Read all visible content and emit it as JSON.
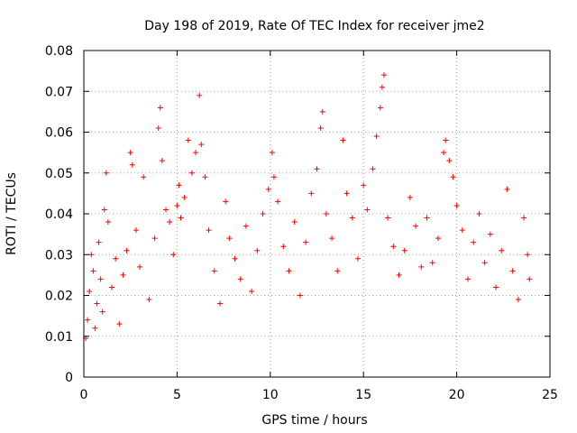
{
  "chart_data": {
    "type": "scatter",
    "title": "Day 198 of 2019, Rate Of TEC Index for receiver jme2",
    "xlabel": "GPS time / hours",
    "ylabel": "ROTI / TECUs",
    "xlim": [
      0,
      25
    ],
    "ylim": [
      0,
      0.08
    ],
    "x_ticks": [
      0,
      5,
      10,
      15,
      20,
      25
    ],
    "x_tick_labels": [
      "0",
      "5",
      "10",
      "15",
      "20",
      "25"
    ],
    "y_ticks": [
      0,
      0.01,
      0.02,
      0.03,
      0.04,
      0.05,
      0.06,
      0.07,
      0.08
    ],
    "y_tick_labels": [
      "0",
      "0.01",
      "0.02",
      "0.03",
      "0.04",
      "0.05",
      "0.06",
      "0.07",
      "0.08"
    ],
    "grid": true,
    "marker": "+",
    "marker_color": "#ff0000",
    "series": [
      {
        "name": "ROTI",
        "color": "#ff0000",
        "points": [
          [
            0.1,
            0.0095
          ],
          [
            0.2,
            0.014
          ],
          [
            0.3,
            0.021
          ],
          [
            0.4,
            0.03
          ],
          [
            0.5,
            0.026
          ],
          [
            0.6,
            0.012
          ],
          [
            0.7,
            0.018
          ],
          [
            0.8,
            0.033
          ],
          [
            0.9,
            0.024
          ],
          [
            1.0,
            0.016
          ],
          [
            1.1,
            0.041
          ],
          [
            1.2,
            0.05
          ],
          [
            1.3,
            0.038
          ],
          [
            1.5,
            0.022
          ],
          [
            1.7,
            0.029
          ],
          [
            1.9,
            0.013
          ],
          [
            2.1,
            0.025
          ],
          [
            2.3,
            0.031
          ],
          [
            2.5,
            0.055
          ],
          [
            2.6,
            0.052
          ],
          [
            2.8,
            0.036
          ],
          [
            3.0,
            0.027
          ],
          [
            3.2,
            0.049
          ],
          [
            3.5,
            0.019
          ],
          [
            3.8,
            0.034
          ],
          [
            4.0,
            0.061
          ],
          [
            4.1,
            0.066
          ],
          [
            4.2,
            0.053
          ],
          [
            4.4,
            0.041
          ],
          [
            4.6,
            0.038
          ],
          [
            4.8,
            0.03
          ],
          [
            5.0,
            0.042
          ],
          [
            5.1,
            0.047
          ],
          [
            5.2,
            0.039
          ],
          [
            5.4,
            0.044
          ],
          [
            5.6,
            0.058
          ],
          [
            5.8,
            0.05
          ],
          [
            6.0,
            0.055
          ],
          [
            6.2,
            0.069
          ],
          [
            6.3,
            0.057
          ],
          [
            6.5,
            0.049
          ],
          [
            6.7,
            0.036
          ],
          [
            7.0,
            0.026
          ],
          [
            7.3,
            0.018
          ],
          [
            7.6,
            0.043
          ],
          [
            7.8,
            0.034
          ],
          [
            8.1,
            0.029
          ],
          [
            8.4,
            0.024
          ],
          [
            8.7,
            0.037
          ],
          [
            9.0,
            0.021
          ],
          [
            9.3,
            0.031
          ],
          [
            9.6,
            0.04
          ],
          [
            9.9,
            0.046
          ],
          [
            10.1,
            0.055
          ],
          [
            10.2,
            0.049
          ],
          [
            10.4,
            0.043
          ],
          [
            10.7,
            0.032
          ],
          [
            11.0,
            0.026
          ],
          [
            11.3,
            0.038
          ],
          [
            11.6,
            0.02
          ],
          [
            11.9,
            0.033
          ],
          [
            12.2,
            0.045
          ],
          [
            12.5,
            0.051
          ],
          [
            12.7,
            0.061
          ],
          [
            12.8,
            0.065
          ],
          [
            13.0,
            0.04
          ],
          [
            13.3,
            0.034
          ],
          [
            13.6,
            0.026
          ],
          [
            13.9,
            0.058
          ],
          [
            14.1,
            0.045
          ],
          [
            14.4,
            0.039
          ],
          [
            14.7,
            0.029
          ],
          [
            15.0,
            0.047
          ],
          [
            15.2,
            0.041
          ],
          [
            15.5,
            0.051
          ],
          [
            15.7,
            0.059
          ],
          [
            15.9,
            0.066
          ],
          [
            16.0,
            0.071
          ],
          [
            16.1,
            0.074
          ],
          [
            16.3,
            0.039
          ],
          [
            16.6,
            0.032
          ],
          [
            16.9,
            0.025
          ],
          [
            17.2,
            0.031
          ],
          [
            17.5,
            0.044
          ],
          [
            17.8,
            0.037
          ],
          [
            18.1,
            0.027
          ],
          [
            18.4,
            0.039
          ],
          [
            18.7,
            0.028
          ],
          [
            19.0,
            0.034
          ],
          [
            19.3,
            0.055
          ],
          [
            19.4,
            0.058
          ],
          [
            19.6,
            0.053
          ],
          [
            19.8,
            0.049
          ],
          [
            20.0,
            0.042
          ],
          [
            20.3,
            0.036
          ],
          [
            20.6,
            0.024
          ],
          [
            20.9,
            0.033
          ],
          [
            21.2,
            0.04
          ],
          [
            21.5,
            0.028
          ],
          [
            21.8,
            0.035
          ],
          [
            22.1,
            0.022
          ],
          [
            22.4,
            0.031
          ],
          [
            22.7,
            0.046
          ],
          [
            23.0,
            0.026
          ],
          [
            23.3,
            0.019
          ],
          [
            23.6,
            0.039
          ],
          [
            23.8,
            0.03
          ],
          [
            23.9,
            0.024
          ]
        ]
      }
    ]
  }
}
